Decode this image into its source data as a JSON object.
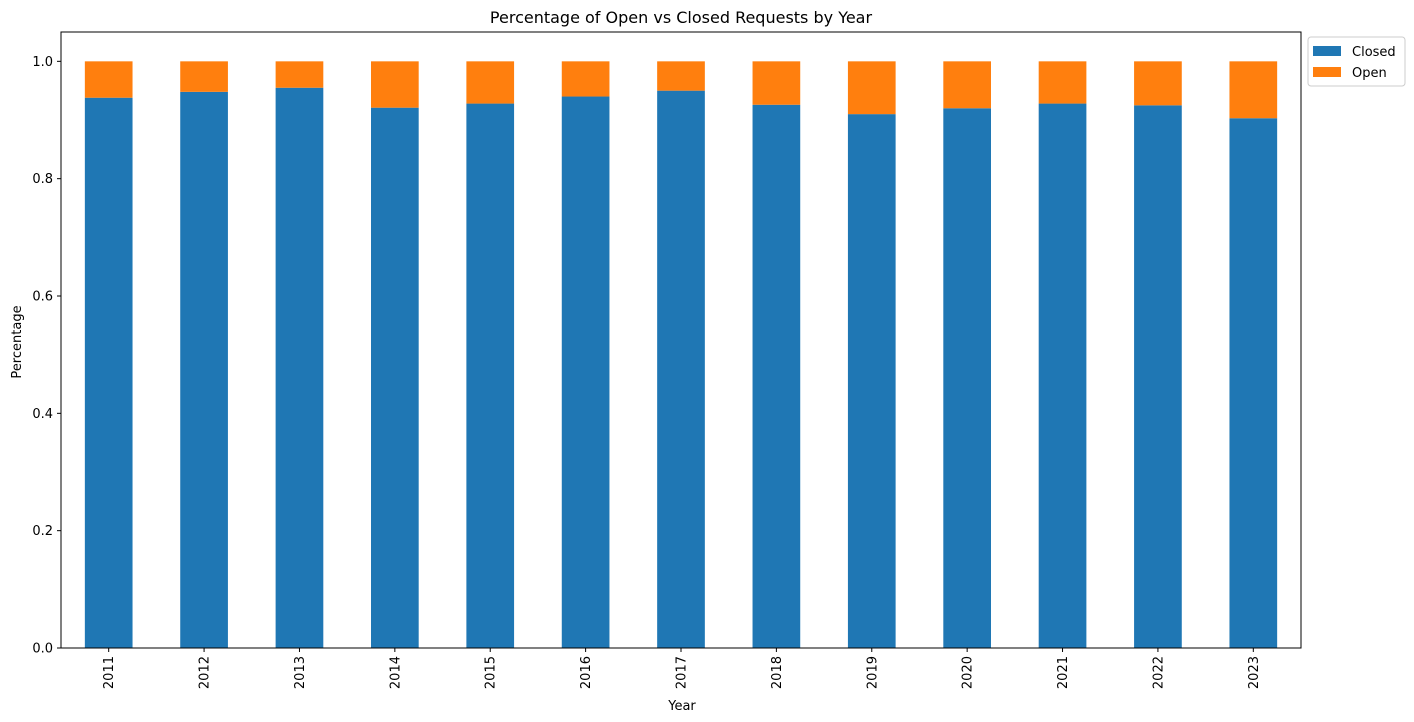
{
  "chart_data": {
    "type": "stacked_bar",
    "title": "Percentage of Open vs Closed Requests by Year",
    "x_label": "Year",
    "y_label": "Percentage",
    "categories": [
      "2011",
      "2012",
      "2013",
      "2014",
      "2015",
      "2016",
      "2017",
      "2018",
      "2019",
      "2020",
      "2021",
      "2022",
      "2023"
    ],
    "series": [
      {
        "name": "Closed",
        "color": "#1f77b4",
        "values": [
          0.938,
          0.948,
          0.955,
          0.921,
          0.928,
          0.94,
          0.95,
          0.926,
          0.91,
          0.92,
          0.928,
          0.925,
          0.903
        ],
        "value_labels": [
          "0.94",
          "0.95",
          "0.96",
          "0.92",
          "0.93",
          "0.94",
          "0.95",
          "0.93",
          "0.91",
          "0.92",
          "0.93",
          "0.92",
          "0.90"
        ]
      },
      {
        "name": "Open",
        "color": "#ff7f0e",
        "values": [
          0.062,
          0.052,
          0.045,
          0.079,
          0.072,
          0.06,
          0.05,
          0.074,
          0.09,
          0.08,
          0.072,
          0.075,
          0.097
        ]
      }
    ],
    "ylim": [
      0,
      1.05
    ],
    "yticks": [
      {
        "value": 0,
        "label": "0.0"
      },
      {
        "value": 0.2,
        "label": "0.2"
      },
      {
        "value": 0.4,
        "label": "0.4"
      },
      {
        "value": 0.6,
        "label": "0.6"
      },
      {
        "value": 0.8,
        "label": "0.8"
      },
      {
        "value": 1,
        "label": "1.0"
      }
    ],
    "grid": false,
    "legend": "outside-upper-right"
  }
}
